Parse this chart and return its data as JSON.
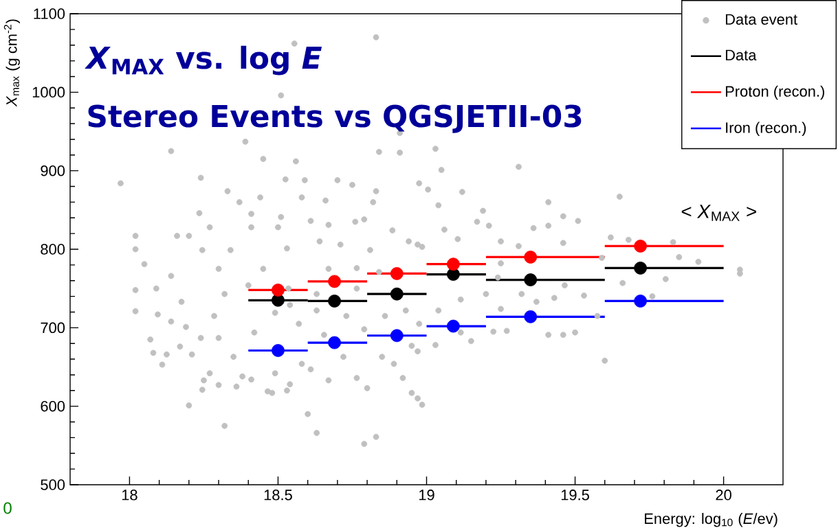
{
  "chart_data": {
    "type": "scatter",
    "title": "*X*$_{MAX}$ vs. log *E*",
    "subtitle": "Stereo Events vs QGSJETII-03",
    "xlabel": "Energy: log$_{10}$ (*E*/ev)",
    "ylabel": "*X*$_{max}$ (g cm$^{-2}$)",
    "annotations": [
      "< *X*$_{MAX}$ >",
      "0"
    ],
    "xlim": [
      17.8,
      20.2
    ],
    "ylim": [
      500,
      1100
    ],
    "xticks": [
      18,
      18.5,
      19,
      19.5,
      20
    ],
    "yticks": [
      500,
      600,
      700,
      800,
      900,
      1000,
      1100
    ],
    "marker": "circle",
    "legend": "top right",
    "series": [
      {
        "name": "Data event",
        "color": "#c0c0c0",
        "x": [
          18.555,
          18.83,
          18.51,
          18.14,
          17.97,
          18.24,
          18.39,
          18.45,
          18.56,
          18.84,
          18.91,
          18.91,
          18.33,
          18.37,
          18.44,
          18.525,
          18.59,
          18.7,
          18.75,
          18.58,
          18.66,
          18.83,
          18.975,
          18.82,
          18.235,
          18.27,
          18.02,
          18.02,
          18.16,
          18.41,
          18.51,
          18.61,
          18.76,
          18.41,
          18.5,
          18.67,
          18.79,
          18.885,
          18.2,
          18.245,
          18.34,
          18.53,
          18.64,
          18.71,
          18.81,
          18.94,
          18.05,
          19.03,
          19.31,
          19.05,
          19.12,
          19.41,
          19.65,
          19.005,
          19.19,
          19.04,
          19.46,
          19.51,
          19.36,
          19.41,
          19.21,
          19.17,
          19.06,
          19.62,
          19.83,
          19.68,
          19.915,
          19.85,
          19.25,
          19.31,
          19.105,
          18.985,
          19.46,
          20.055,
          19.6,
          18.97,
          18.985,
          19.15,
          19.805,
          19.76,
          19.5,
          19.46,
          19.41,
          19.27,
          19.225,
          19.53,
          19.37,
          19.25,
          19.2,
          19.66,
          18.97,
          19.03,
          19.115,
          19.04,
          19.115,
          19.43,
          19.32,
          19.465,
          19.24,
          19.575,
          18.02,
          18.02,
          18.095,
          18.07,
          18.08,
          18.125,
          18.11,
          18.09,
          18.2,
          18.32,
          18.6,
          18.63,
          18.79,
          18.83,
          18.245,
          18.25,
          18.3,
          18.36,
          18.48,
          18.53,
          18.54,
          18.465,
          18.41,
          18.27,
          18.49,
          18.61,
          18.67,
          18.765,
          18.8,
          18.92,
          18.95,
          18.89,
          18.85,
          18.21,
          18.17,
          18.24,
          18.35,
          18.38,
          18.58,
          18.72,
          18.95,
          18.14,
          18.175,
          18.14,
          18.19,
          18.285,
          18.3,
          18.32,
          18.4,
          18.42,
          18.49,
          18.54,
          18.57,
          18.63,
          18.655,
          18.73,
          18.765,
          18.79,
          18.84,
          18.86,
          18.93,
          18.975,
          18.45,
          18.67,
          18.765,
          18.3,
          18.535,
          18.63,
          18.97,
          19.25,
          19.59,
          20.055
        ],
        "values": [
          1062,
          1070,
          996,
          925,
          884,
          891,
          937,
          915,
          912,
          924,
          923,
          948,
          874,
          860,
          866,
          889,
          888,
          888,
          882,
          866,
          862,
          874,
          884,
          860,
          846,
          828,
          817,
          800,
          817,
          845,
          841,
          836,
          835,
          828,
          828,
          831,
          838,
          824,
          817,
          799,
          799,
          801,
          810,
          806,
          799,
          810,
          781,
          928,
          905,
          901,
          873,
          860,
          867,
          876,
          849,
          856,
          842,
          836,
          827,
          830,
          830,
          835,
          825,
          815,
          809,
          812,
          784,
          790,
          810,
          804,
          813,
          803,
          808,
          774,
          658,
          610,
          602,
          683,
          762,
          740,
          694,
          691,
          691,
          696,
          695,
          741,
          733,
          724,
          743,
          757,
          670,
          678,
          694,
          722,
          736,
          738,
          743,
          754,
          764,
          715,
          748,
          721,
          717,
          685,
          668,
          666,
          653,
          750,
          601,
          575,
          590,
          566,
          552,
          561,
          621,
          633,
          627,
          625,
          617,
          620,
          628,
          619,
          634,
          642,
          642,
          647,
          633,
          636,
          623,
          636,
          617,
          654,
          663,
          666,
          676,
          687,
          663,
          638,
          654,
          663,
          677,
          766,
          733,
          708,
          701,
          715,
          687,
          743,
          754,
          694,
          719,
          729,
          705,
          722,
          691,
          715,
          750,
          698,
          771,
          715,
          722,
          705,
          775,
          775,
          776,
          775,
          750,
          743,
          806,
          782,
          789,
          769
        ]
      },
      {
        "name": "Data",
        "color": "#000000",
        "x": [
          18.5,
          18.69,
          18.9,
          19.09,
          19.35,
          19.72
        ],
        "values": [
          735,
          734,
          743,
          768,
          761,
          776
        ],
        "xerrors": [
          [
            18.4,
            18.6
          ],
          [
            18.6,
            18.8
          ],
          [
            18.8,
            19.0
          ],
          [
            19.0,
            19.2
          ],
          [
            19.2,
            19.6
          ],
          [
            19.6,
            20.0
          ]
        ]
      },
      {
        "name": "Proton (recon.)",
        "color": "#ff0000",
        "x": [
          18.5,
          18.69,
          18.9,
          19.09,
          19.35,
          19.72
        ],
        "values": [
          748,
          759,
          769,
          781,
          790,
          804
        ],
        "xerrors": [
          [
            18.4,
            18.6
          ],
          [
            18.6,
            18.8
          ],
          [
            18.8,
            19.0
          ],
          [
            19.0,
            19.2
          ],
          [
            19.2,
            19.6
          ],
          [
            19.6,
            20.0
          ]
        ]
      },
      {
        "name": "Iron (recon.)",
        "color": "#0000ff",
        "x": [
          18.5,
          18.69,
          18.9,
          19.09,
          19.35,
          19.72
        ],
        "values": [
          671,
          681,
          690,
          702,
          714,
          734
        ],
        "xerrors": [
          [
            18.4,
            18.6
          ],
          [
            18.6,
            18.8
          ],
          [
            18.8,
            19.0
          ],
          [
            19.0,
            19.2
          ],
          [
            19.2,
            19.6
          ],
          [
            19.6,
            20.0
          ]
        ]
      }
    ]
  }
}
